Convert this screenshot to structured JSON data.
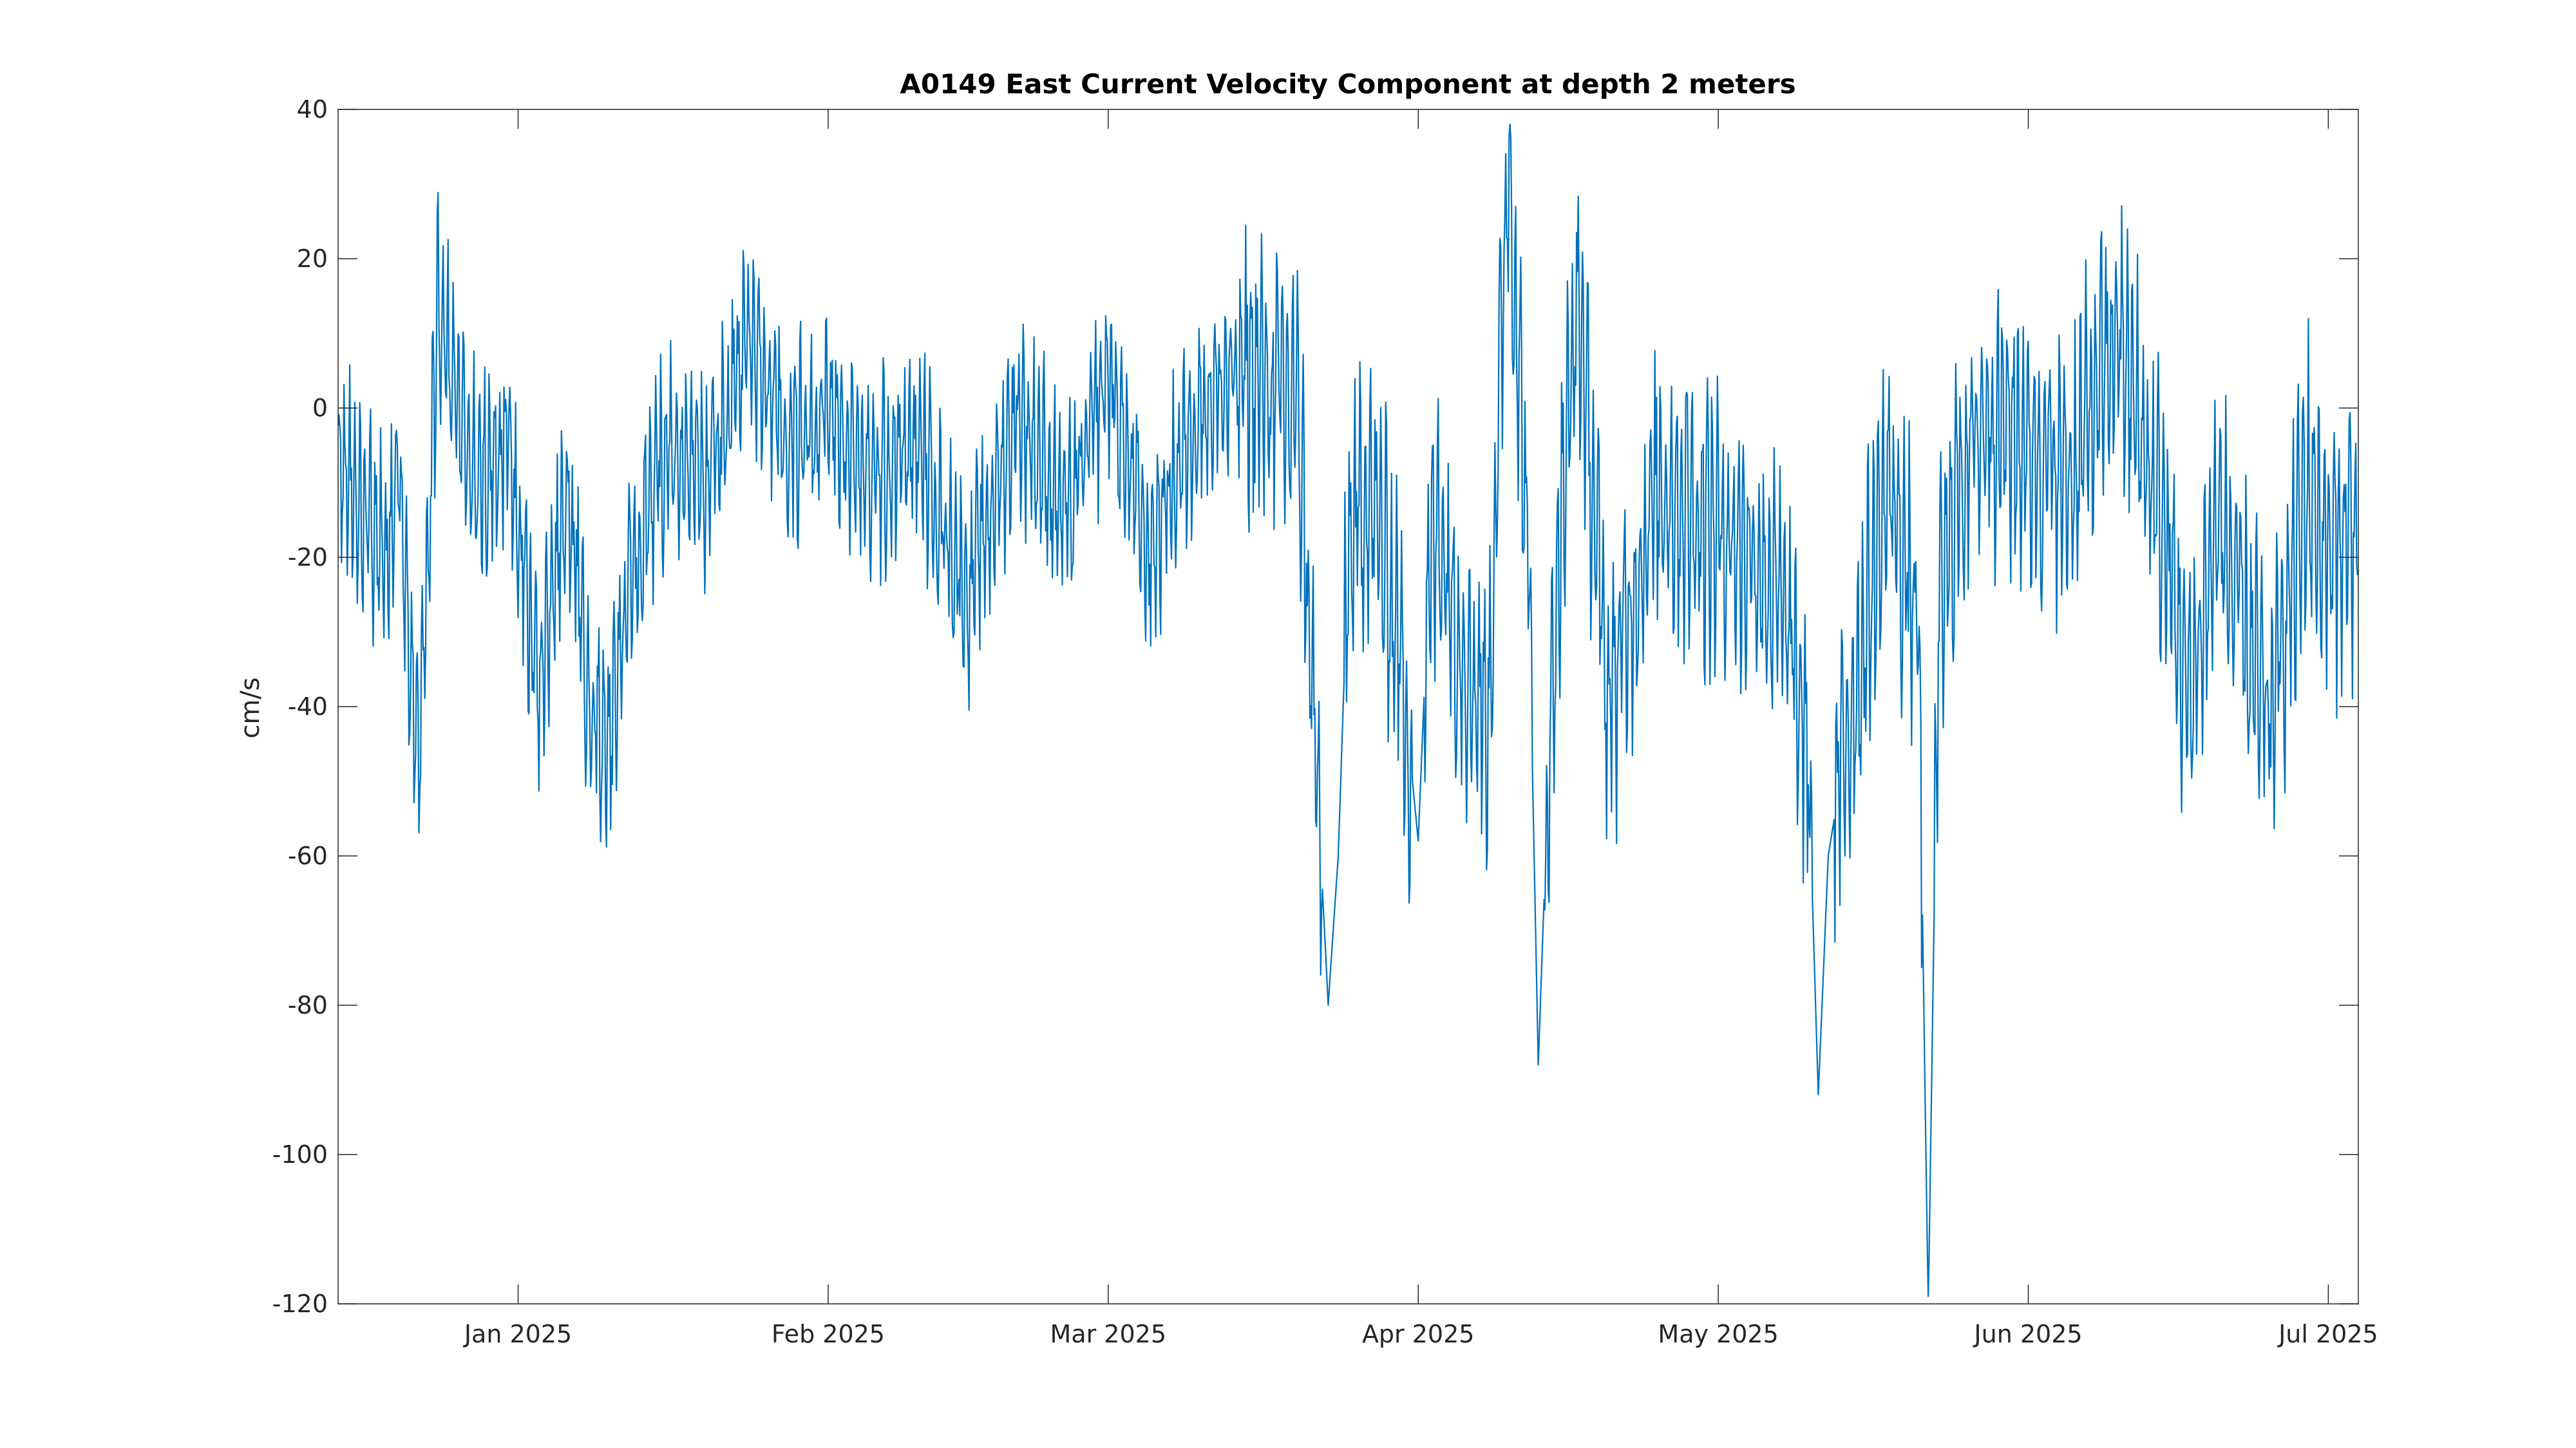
{
  "chart_data": {
    "type": "line",
    "title": "A0149 East Current Velocity Component at depth 2 meters",
    "xlabel": "",
    "ylabel": "cm/s",
    "x_range": [
      "2024-12-14",
      "2025-07-04"
    ],
    "ylim": [
      -120,
      40
    ],
    "yticks": [
      40,
      20,
      0,
      -20,
      -40,
      -60,
      -80,
      -100,
      -120
    ],
    "xticks": [
      {
        "date": "2025-01-01",
        "label": "Jan 2025"
      },
      {
        "date": "2025-02-01",
        "label": "Feb 2025"
      },
      {
        "date": "2025-03-01",
        "label": "Mar 2025"
      },
      {
        "date": "2025-04-01",
        "label": "Apr 2025"
      },
      {
        "date": "2025-05-01",
        "label": "May 2025"
      },
      {
        "date": "2025-06-01",
        "label": "Jun 2025"
      },
      {
        "date": "2025-07-01",
        "label": "Jul 2025"
      }
    ],
    "grid": false,
    "line_color": "#0072bd",
    "series": [
      {
        "x": [
          "2024-12-14",
          "2024-12-17",
          "2024-12-19",
          "2024-12-20",
          "2024-12-21",
          "2024-12-22",
          "2024-12-23",
          "2024-12-24",
          "2024-12-26",
          "2024-12-28",
          "2024-12-31",
          "2025-01-03",
          "2025-01-05",
          "2025-01-06",
          "2025-01-08",
          "2025-01-10",
          "2025-01-12",
          "2025-01-13",
          "2025-01-16",
          "2025-01-20",
          "2025-01-24",
          "2025-01-28",
          "2025-02-01",
          "2025-02-05",
          "2025-02-10",
          "2025-02-15",
          "2025-02-20",
          "2025-02-25",
          "2025-03-01",
          "2025-03-05",
          "2025-03-10",
          "2025-03-15",
          "2025-03-20",
          "2025-03-23",
          "2025-03-24",
          "2025-03-25",
          "2025-03-27",
          "2025-03-30",
          "2025-04-01",
          "2025-04-02",
          "2025-04-03",
          "2025-04-05",
          "2025-04-08",
          "2025-04-10",
          "2025-04-12",
          "2025-04-13",
          "2025-04-14",
          "2025-04-15",
          "2025-04-17",
          "2025-04-20",
          "2025-04-25",
          "2025-04-30",
          "2025-05-05",
          "2025-05-08",
          "2025-05-10",
          "2025-05-11",
          "2025-05-12",
          "2025-05-15",
          "2025-05-18",
          "2025-05-21",
          "2025-05-22",
          "2025-05-23",
          "2025-05-25",
          "2025-05-28",
          "2025-06-01",
          "2025-06-05",
          "2025-06-10",
          "2025-06-15",
          "2025-06-17",
          "2025-06-20",
          "2025-06-25",
          "2025-06-29",
          "2025-07-01",
          "2025-07-04"
        ],
        "y": [
          -5,
          -15,
          -20,
          -10,
          -30,
          -47,
          -20,
          14,
          0,
          -10,
          -5,
          -37,
          -20,
          -10,
          -39,
          -46,
          -25,
          -20,
          -5,
          -10,
          10,
          -5,
          0,
          -10,
          -5,
          -25,
          0,
          -15,
          5,
          -20,
          0,
          5,
          0,
          -80,
          -60,
          -20,
          -10,
          -30,
          -58,
          -25,
          -15,
          -30,
          -42,
          35,
          -20,
          -88,
          -50,
          -20,
          15,
          -40,
          -10,
          -15,
          -20,
          -30,
          -47,
          -92,
          -60,
          -35,
          -10,
          -30,
          -121,
          -30,
          -10,
          0,
          -5,
          -10,
          10,
          -20,
          -40,
          -15,
          -43,
          -10,
          -20,
          -15
        ]
      }
    ]
  }
}
